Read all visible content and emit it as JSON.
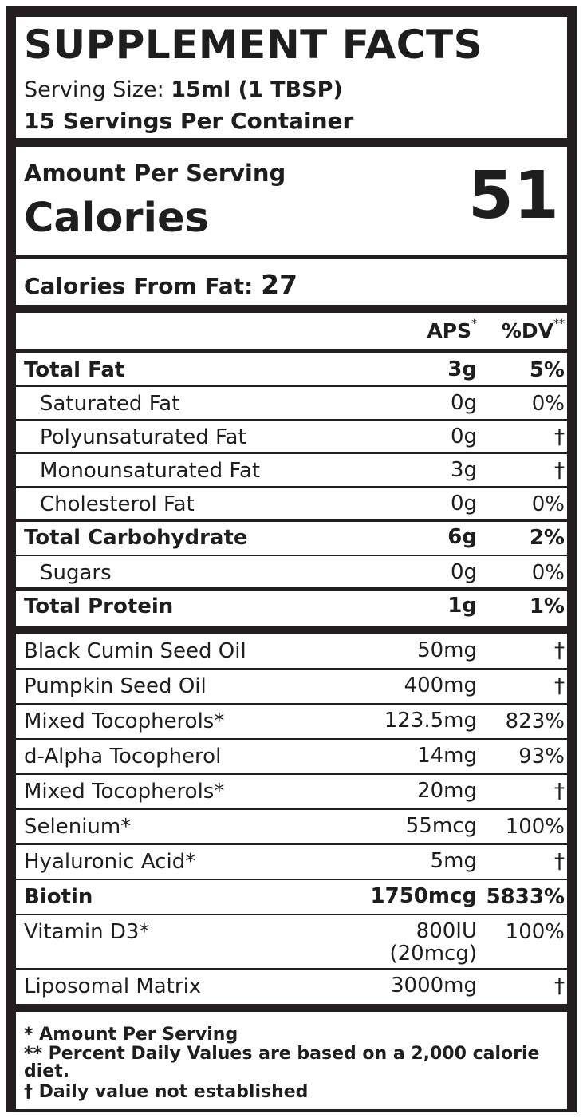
{
  "header": {
    "title": "SUPPLEMENT FACTS",
    "serving_size_label": "Serving Size:",
    "serving_size_value": "15ml (1 TBSP)",
    "servings_count": "15",
    "servings_label": "Servings Per Container"
  },
  "calories": {
    "amount_label": "Amount Per Serving",
    "calories_label": "Calories",
    "calories_value": "51",
    "from_fat_label": "Calories From Fat:",
    "from_fat_value": "27"
  },
  "columns": {
    "aps": "APS",
    "aps_mark": "*",
    "dv": "%DV",
    "dv_mark": "**"
  },
  "nutrients": [
    {
      "name": "Total Fat",
      "amount": "3g",
      "dv": "5%",
      "bold": true,
      "indent": false
    },
    {
      "name": "Saturated Fat",
      "amount": "0g",
      "dv": "0%",
      "bold": false,
      "indent": true
    },
    {
      "name": "Polyunsaturated Fat",
      "amount": "0g",
      "dv": "†",
      "bold": false,
      "indent": true
    },
    {
      "name": "Monounsaturated Fat",
      "amount": "3g",
      "dv": "†",
      "bold": false,
      "indent": true
    },
    {
      "name": "Cholesterol Fat",
      "amount": "0g",
      "dv": "0%",
      "bold": false,
      "indent": true
    },
    {
      "name": "Total Carbohydrate",
      "amount": "6g",
      "dv": "2%",
      "bold": true,
      "indent": false
    },
    {
      "name": "Sugars",
      "amount": "0g",
      "dv": "0%",
      "bold": false,
      "indent": true
    },
    {
      "name": "Total Protein",
      "amount": "1g",
      "dv": "1%",
      "bold": true,
      "indent": false
    }
  ],
  "ingredients": [
    {
      "name": "Black Cumin Seed Oil",
      "amount": "50mg",
      "dv": "†",
      "bold": false
    },
    {
      "name": "Pumpkin Seed Oil",
      "amount": "400mg",
      "dv": "†",
      "bold": false
    },
    {
      "name": "Mixed Tocopherols*",
      "amount": "123.5mg",
      "dv": "823%",
      "bold": false
    },
    {
      "name": "d-Alpha Tocopherol",
      "amount": "14mg",
      "dv": "93%",
      "bold": false
    },
    {
      "name": "Mixed Tocopherols*",
      "amount": "20mg",
      "dv": "†",
      "bold": false
    },
    {
      "name": "Selenium*",
      "amount": "55mcg",
      "dv": "100%",
      "bold": false
    },
    {
      "name": "Hyaluronic Acid*",
      "amount": "5mg",
      "dv": "†",
      "bold": false
    },
    {
      "name": "Biotin",
      "amount": "1750mcg",
      "dv": "5833%",
      "bold": true
    },
    {
      "name": "Vitamin D3*",
      "amount": "800IU",
      "amount_line2": "(20mcg)",
      "dv": "100%",
      "bold": false
    },
    {
      "name": "Liposomal Matrix",
      "amount": "3000mg",
      "dv": "†",
      "bold": false
    }
  ],
  "footnotes": [
    "* Amount Per Serving",
    "** Percent Daily Values are based on a 2,000 calorie diet.",
    "† Daily value not established"
  ],
  "colors": {
    "border": "#231f20",
    "text": "#1e1e1e",
    "background": "#ffffff"
  }
}
